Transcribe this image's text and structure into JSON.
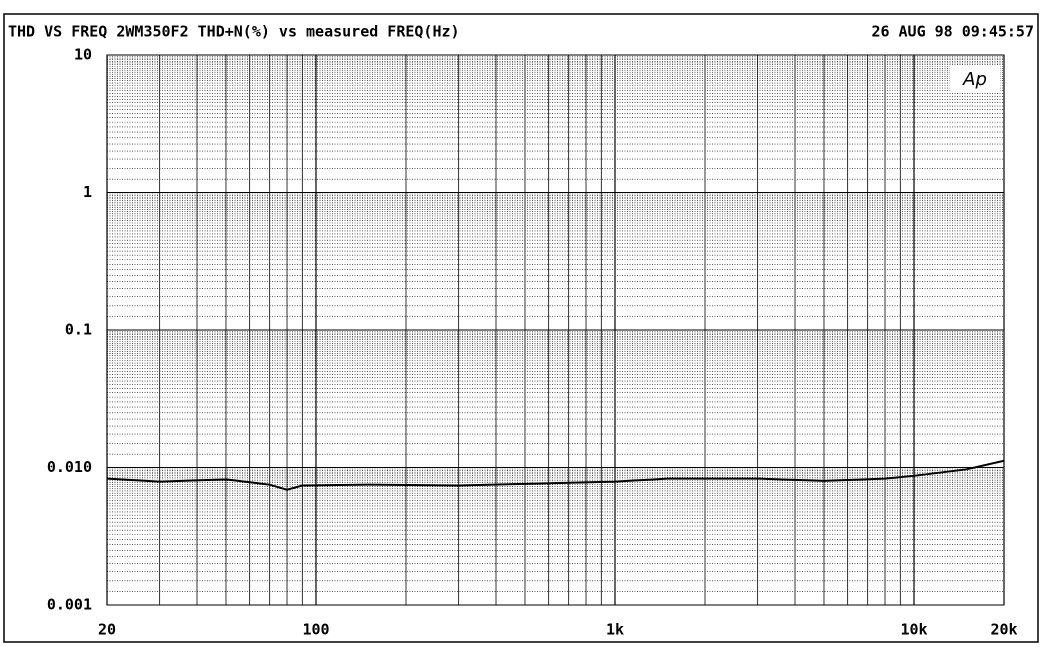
{
  "chart_data": {
    "type": "line",
    "title": "THD VS FREQ 2WM350F2 THD+N(%) vs measured FREQ(Hz)",
    "timestamp": "26 AUG 98 09:45:57",
    "logo": "Ap",
    "x": [
      20,
      30,
      50,
      70,
      80,
      90,
      150,
      300,
      500,
      1000,
      1500,
      3000,
      5000,
      8000,
      10000,
      15000,
      20000
    ],
    "series": [
      {
        "color": "#000000",
        "values": [
          0.0083,
          0.0079,
          0.0082,
          0.0075,
          0.0069,
          0.0074,
          0.0075,
          0.0074,
          0.0076,
          0.0079,
          0.0083,
          0.0083,
          0.008,
          0.0083,
          0.0087,
          0.0097,
          0.0112
        ]
      }
    ],
    "xlim": [
      20,
      20000
    ],
    "ylim": [
      0.001,
      10
    ],
    "xticks": [
      20,
      100,
      {
        "value": 1000,
        "label": "1k"
      },
      {
        "value": 10000,
        "label": "10k"
      },
      {
        "value": 20000,
        "label": "20k"
      }
    ],
    "yticks": [
      10,
      1,
      0.1,
      {
        "value": 0.01,
        "label": "0.010"
      },
      0.001
    ],
    "xlog": true,
    "ylog": true,
    "grid": true
  }
}
